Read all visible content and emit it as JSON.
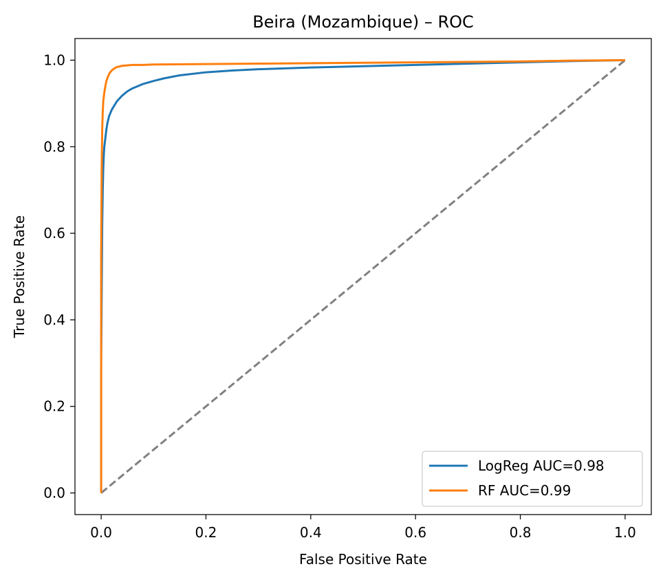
{
  "chart_data": {
    "type": "line",
    "title": "Beira (Mozambique) – ROC",
    "xlabel": "False Positive Rate",
    "ylabel": "True Positive Rate",
    "xlim": [
      -0.05,
      1.05
    ],
    "ylim": [
      -0.05,
      1.05
    ],
    "x_ticks": [
      0.0,
      0.2,
      0.4,
      0.6,
      0.8,
      1.0
    ],
    "y_ticks": [
      0.0,
      0.2,
      0.4,
      0.6,
      0.8,
      1.0
    ],
    "x_tick_labels": [
      "0.0",
      "0.2",
      "0.4",
      "0.6",
      "0.8",
      "1.0"
    ],
    "y_tick_labels": [
      "0.0",
      "0.2",
      "0.4",
      "0.6",
      "0.8",
      "1.0"
    ],
    "grid": false,
    "legend_position": "lower right",
    "series": [
      {
        "name": "LogReg AUC=0.98",
        "color": "#1f77b4",
        "style": "solid",
        "x": [
          0.0,
          0.0,
          0.002,
          0.003,
          0.004,
          0.005,
          0.006,
          0.008,
          0.01,
          0.012,
          0.015,
          0.02,
          0.025,
          0.03,
          0.04,
          0.05,
          0.06,
          0.07,
          0.08,
          0.1,
          0.12,
          0.15,
          0.2,
          0.25,
          0.3,
          0.4,
          0.5,
          0.6,
          0.7,
          0.8,
          0.9,
          1.0
        ],
        "y": [
          0.0,
          0.3,
          0.62,
          0.7,
          0.75,
          0.78,
          0.8,
          0.82,
          0.84,
          0.855,
          0.87,
          0.885,
          0.895,
          0.905,
          0.918,
          0.928,
          0.935,
          0.94,
          0.945,
          0.952,
          0.958,
          0.965,
          0.972,
          0.976,
          0.979,
          0.983,
          0.986,
          0.989,
          0.992,
          0.995,
          0.998,
          1.0
        ]
      },
      {
        "name": "RF AUC=0.99",
        "color": "#ff7f0e",
        "style": "solid",
        "x": [
          0.0,
          0.0,
          0.001,
          0.002,
          0.003,
          0.004,
          0.006,
          0.008,
          0.01,
          0.013,
          0.016,
          0.02,
          0.025,
          0.03,
          0.04,
          0.05,
          0.06,
          0.08,
          0.1,
          0.2,
          0.3,
          0.4,
          0.5,
          0.6,
          0.7,
          0.8,
          0.9,
          1.0
        ],
        "y": [
          0.0,
          0.55,
          0.75,
          0.84,
          0.88,
          0.905,
          0.925,
          0.94,
          0.952,
          0.962,
          0.97,
          0.976,
          0.981,
          0.984,
          0.987,
          0.988,
          0.989,
          0.989,
          0.99,
          0.991,
          0.992,
          0.993,
          0.994,
          0.995,
          0.996,
          0.997,
          0.999,
          1.0
        ]
      },
      {
        "color": "#808080",
        "style": "dashed",
        "x": [
          0.0,
          1.0
        ],
        "y": [
          0.0,
          1.0
        ]
      }
    ]
  }
}
